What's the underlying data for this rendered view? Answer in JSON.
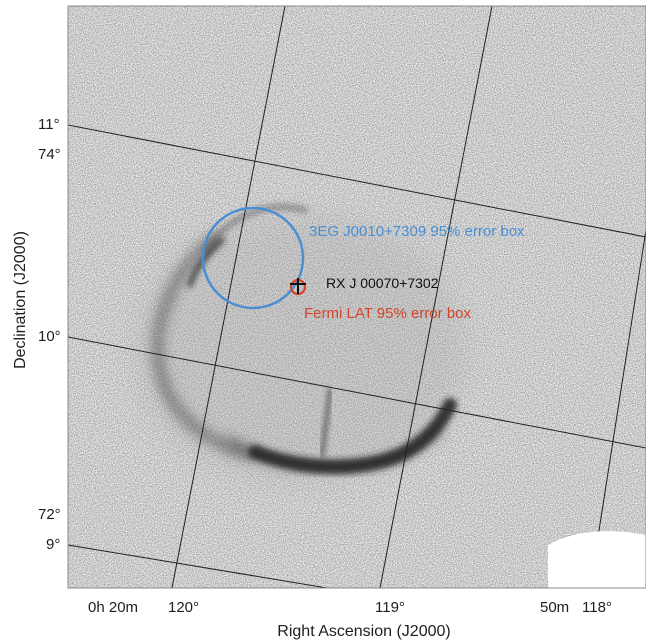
{
  "figure": {
    "xlabel": "Right Ascension (J2000)",
    "ylabel": "Declination (J2000)",
    "x_ticks": [
      "0h 20m",
      "120°",
      "119°",
      "50m",
      "118°"
    ],
    "y_ticks_upper": [
      "11°",
      "74°"
    ],
    "y_tick_mid": "10°",
    "y_ticks_lower": [
      "72°",
      "9°"
    ]
  },
  "annotations": {
    "egret_label": "3EG J0010+7309 95% error box",
    "source_label": "RX J 00070+7302",
    "fermi_label": "Fermi LAT 95% error box"
  },
  "colors": {
    "egret": "#4a8fd4",
    "fermi": "#d2452b",
    "marker": "#111111",
    "grid": "#222222",
    "nebula": "#2c2c2c"
  }
}
